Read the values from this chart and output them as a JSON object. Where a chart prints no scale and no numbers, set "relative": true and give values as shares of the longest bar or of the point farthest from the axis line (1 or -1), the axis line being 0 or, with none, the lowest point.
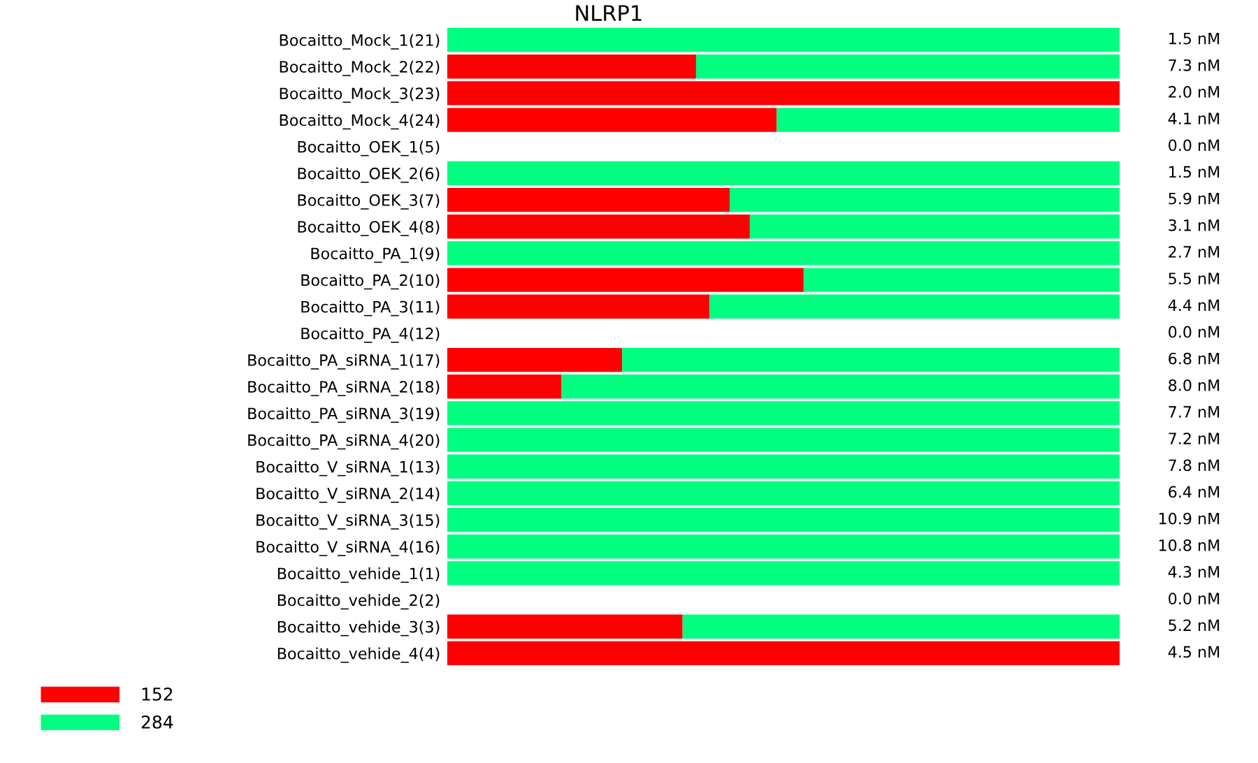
{
  "chart_data": {
    "type": "bar",
    "orientation": "horizontal",
    "stacked": true,
    "relative": true,
    "title": "NLRP1",
    "categories": [
      "Bocaitto_Mock_1(21)",
      "Bocaitto_Mock_2(22)",
      "Bocaitto_Mock_3(23)",
      "Bocaitto_Mock_4(24)",
      "Bocaitto_OEK_1(5)",
      "Bocaitto_OEK_2(6)",
      "Bocaitto_OEK_3(7)",
      "Bocaitto_OEK_4(8)",
      "Bocaitto_PA_1(9)",
      "Bocaitto_PA_2(10)",
      "Bocaitto_PA_3(11)",
      "Bocaitto_PA_4(12)",
      "Bocaitto_PA_siRNA_1(17)",
      "Bocaitto_PA_siRNA_2(18)",
      "Bocaitto_PA_siRNA_3(19)",
      "Bocaitto_PA_siRNA_4(20)",
      "Bocaitto_V_siRNA_1(13)",
      "Bocaitto_V_siRNA_2(14)",
      "Bocaitto_V_siRNA_3(15)",
      "Bocaitto_V_siRNA_4(16)",
      "Bocaitto_vehide_1(1)",
      "Bocaitto_vehide_2(2)",
      "Bocaitto_vehide_3(3)",
      "Bocaitto_vehide_4(4)"
    ],
    "series": [
      {
        "name": "152",
        "color": "#ff0000",
        "values": [
          0,
          0.37,
          1,
          0.49,
          0,
          0,
          0.42,
          0.45,
          0,
          0.53,
          0.39,
          0,
          0.26,
          0.17,
          0,
          0,
          0,
          0,
          0,
          0,
          0,
          0,
          0.35,
          1
        ]
      },
      {
        "name": "284",
        "color": "#00ff80",
        "values": [
          1,
          0.63,
          0,
          0.51,
          0,
          1,
          0.58,
          0.55,
          1,
          0.47,
          0.61,
          0,
          0.74,
          0.83,
          1,
          1,
          1,
          1,
          1,
          1,
          1,
          0,
          0.65,
          0
        ]
      }
    ],
    "annotations": [
      "1.5 nM",
      "7.3 nM",
      "2.0 nM",
      "4.1 nM",
      "0.0 nM",
      "1.5 nM",
      "5.9 nM",
      "3.1 nM",
      "2.7 nM",
      "5.5 nM",
      "4.4 nM",
      "0.0 nM",
      "6.8 nM",
      "8.0 nM",
      "7.7 nM",
      "7.2 nM",
      "7.8 nM",
      "6.4 nM",
      "10.9 nM",
      "10.8 nM",
      "4.3 nM",
      "0.0 nM",
      "5.2 nM",
      "4.5 nM"
    ],
    "legend": "bottom left",
    "grid": false
  }
}
